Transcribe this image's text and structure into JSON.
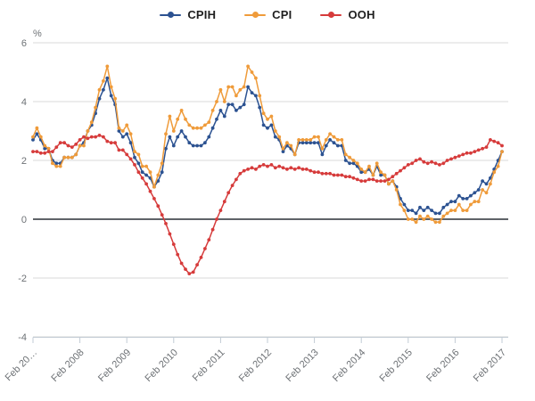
{
  "chart_data": {
    "type": "line",
    "title": "",
    "unit_label": "%",
    "legend_position": "top",
    "grid": "horizontal",
    "ylim": [
      -4,
      6
    ],
    "yticks": [
      6,
      4,
      2,
      0,
      -2,
      -4
    ],
    "x_tick_labels": [
      "Feb 20…",
      "Feb 2008",
      "Feb 2009",
      "Feb 2010",
      "Feb 2011",
      "Feb 2012",
      "Feb 2013",
      "Feb 2014",
      "Feb 2015",
      "Feb 2016",
      "Feb 2017"
    ],
    "x_start": "Feb 2007",
    "x_end": "Feb 2017",
    "points_per_tick": 12,
    "series": [
      {
        "name": "CPIH",
        "color": "#2c5291",
        "values": [
          2.7,
          2.9,
          2.7,
          2.4,
          2.4,
          2.0,
          1.9,
          1.9,
          2.1,
          2.1,
          2.1,
          2.2,
          2.5,
          2.6,
          3.0,
          3.2,
          3.6,
          4.1,
          4.4,
          4.8,
          4.2,
          3.9,
          3.0,
          2.8,
          2.9,
          2.6,
          2.1,
          1.9,
          1.6,
          1.5,
          1.4,
          1.1,
          1.3,
          1.6,
          2.4,
          2.8,
          2.5,
          2.8,
          3.0,
          2.8,
          2.6,
          2.5,
          2.5,
          2.5,
          2.6,
          2.8,
          3.1,
          3.4,
          3.7,
          3.5,
          3.9,
          3.9,
          3.7,
          3.8,
          3.9,
          4.5,
          4.3,
          4.2,
          3.8,
          3.2,
          3.1,
          3.2,
          2.8,
          2.7,
          2.3,
          2.5,
          2.4,
          2.2,
          2.6,
          2.6,
          2.6,
          2.6,
          2.6,
          2.6,
          2.2,
          2.5,
          2.7,
          2.6,
          2.5,
          2.5,
          2.0,
          1.9,
          1.9,
          1.8,
          1.6,
          1.6,
          1.7,
          1.5,
          1.8,
          1.5,
          1.5,
          1.2,
          1.3,
          1.1,
          0.7,
          0.5,
          0.3,
          0.3,
          0.2,
          0.4,
          0.3,
          0.4,
          0.3,
          0.2,
          0.2,
          0.4,
          0.5,
          0.6,
          0.6,
          0.8,
          0.7,
          0.7,
          0.8,
          0.9,
          1.0,
          1.3,
          1.2,
          1.4,
          1.7,
          2.0,
          2.3
        ]
      },
      {
        "name": "CPI",
        "color": "#ef9b3a",
        "values": [
          2.8,
          3.1,
          2.8,
          2.5,
          2.4,
          1.9,
          1.8,
          1.8,
          2.1,
          2.1,
          2.1,
          2.2,
          2.5,
          2.5,
          3.0,
          3.3,
          3.8,
          4.4,
          4.7,
          5.2,
          4.5,
          4.1,
          3.1,
          3.0,
          3.2,
          2.9,
          2.3,
          2.2,
          1.8,
          1.8,
          1.6,
          1.1,
          1.5,
          1.9,
          2.9,
          3.5,
          3.0,
          3.4,
          3.7,
          3.4,
          3.2,
          3.1,
          3.1,
          3.1,
          3.2,
          3.3,
          3.7,
          4.0,
          4.4,
          4.0,
          4.5,
          4.5,
          4.2,
          4.4,
          4.5,
          5.2,
          5.0,
          4.8,
          4.2,
          3.6,
          3.4,
          3.5,
          3.0,
          2.8,
          2.4,
          2.6,
          2.5,
          2.2,
          2.7,
          2.7,
          2.7,
          2.7,
          2.8,
          2.8,
          2.4,
          2.7,
          2.9,
          2.8,
          2.7,
          2.7,
          2.2,
          2.1,
          2.0,
          1.9,
          1.7,
          1.6,
          1.8,
          1.5,
          1.9,
          1.6,
          1.5,
          1.2,
          1.3,
          1.0,
          0.5,
          0.3,
          0.0,
          0.0,
          -0.1,
          0.1,
          0.0,
          0.1,
          0.0,
          -0.1,
          -0.1,
          0.1,
          0.2,
          0.3,
          0.3,
          0.5,
          0.3,
          0.3,
          0.5,
          0.6,
          0.6,
          1.0,
          0.9,
          1.2,
          1.6,
          1.8,
          2.3
        ]
      },
      {
        "name": "OOH",
        "color": "#d63b3b",
        "values": [
          2.3,
          2.3,
          2.25,
          2.25,
          2.3,
          2.3,
          2.45,
          2.6,
          2.6,
          2.5,
          2.45,
          2.55,
          2.7,
          2.8,
          2.75,
          2.8,
          2.8,
          2.85,
          2.8,
          2.65,
          2.6,
          2.6,
          2.35,
          2.35,
          2.2,
          2.05,
          1.85,
          1.6,
          1.4,
          1.2,
          0.95,
          0.7,
          0.45,
          0.15,
          -0.15,
          -0.5,
          -0.85,
          -1.2,
          -1.5,
          -1.7,
          -1.85,
          -1.8,
          -1.55,
          -1.3,
          -1.0,
          -0.7,
          -0.35,
          0.0,
          0.3,
          0.6,
          0.9,
          1.15,
          1.35,
          1.55,
          1.65,
          1.7,
          1.75,
          1.7,
          1.8,
          1.85,
          1.8,
          1.85,
          1.75,
          1.8,
          1.75,
          1.7,
          1.75,
          1.7,
          1.75,
          1.7,
          1.7,
          1.65,
          1.6,
          1.6,
          1.55,
          1.55,
          1.55,
          1.5,
          1.5,
          1.5,
          1.45,
          1.45,
          1.4,
          1.35,
          1.3,
          1.3,
          1.35,
          1.35,
          1.3,
          1.3,
          1.3,
          1.35,
          1.45,
          1.55,
          1.65,
          1.75,
          1.85,
          1.9,
          2.0,
          2.05,
          1.95,
          1.9,
          1.95,
          1.9,
          1.85,
          1.9,
          2.0,
          2.05,
          2.1,
          2.15,
          2.2,
          2.25,
          2.25,
          2.3,
          2.35,
          2.4,
          2.45,
          2.7,
          2.65,
          2.6,
          2.5
        ]
      }
    ],
    "colors": {
      "gridline": "#d9d9d9",
      "zero_line": "#5f6368",
      "axis_line": "#c2cbd4",
      "axis_text": "#6d7175"
    }
  }
}
